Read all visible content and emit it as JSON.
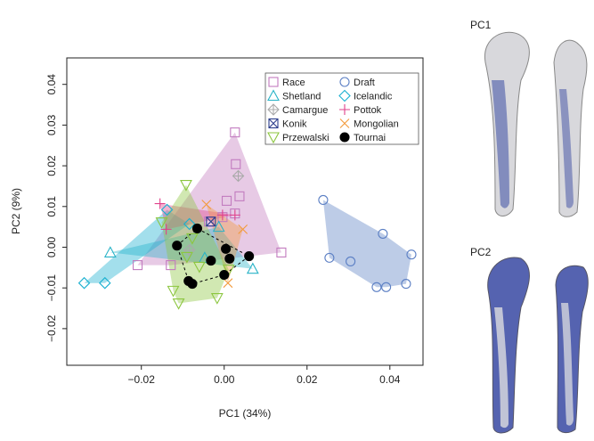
{
  "chart_data": {
    "type": "scatter",
    "x_label": "PC1 (34%)",
    "y_label": "PC2 (9%)",
    "xlim": [
      -0.038,
      0.048
    ],
    "ylim": [
      -0.029,
      0.0465
    ],
    "xticks": [
      {
        "value": -0.02,
        "label": "−0.02"
      },
      {
        "value": 0,
        "label": "0.00"
      },
      {
        "value": 0.02,
        "label": "0.02"
      },
      {
        "value": 0.04,
        "label": "0.04"
      }
    ],
    "yticks": [
      {
        "value": -0.02,
        "label": "−0.02"
      },
      {
        "value": -0.01,
        "label": "−0.01"
      },
      {
        "value": 0,
        "label": "0.00"
      },
      {
        "value": 0.01,
        "label": "0.01"
      },
      {
        "value": 0.02,
        "label": "0.02"
      },
      {
        "value": 0.03,
        "label": "0.03"
      },
      {
        "value": 0.04,
        "label": "0.04"
      }
    ],
    "series": [
      {
        "name": "Race",
        "color": "#c27bbf",
        "marker": "square",
        "hull": true,
        "x": [
          0.0026,
          0.0028,
          0.0037,
          0.0006,
          -0.0004,
          0.0026,
          -0.0037,
          0.0138,
          -0.0209,
          -0.0129
        ],
        "y": [
          0.0282,
          0.0204,
          0.0125,
          0.0114,
          0.0074,
          0.0083,
          0.0063,
          -0.0013,
          -0.0044,
          -0.0044
        ]
      },
      {
        "name": "Draft",
        "color": "#5b7fc4",
        "marker": "circle",
        "hull": true,
        "x": [
          0.0239,
          0.0254,
          0.0305,
          0.0383,
          0.0452,
          0.0368,
          0.0391,
          0.0439
        ],
        "y": [
          0.0116,
          -0.0026,
          -0.0035,
          0.0033,
          -0.0018,
          -0.0098,
          -0.0098,
          -0.009
        ]
      },
      {
        "name": "Shetland",
        "color": "#29b3c7",
        "marker": "triangle",
        "hull": true,
        "x": [
          -0.0275,
          -0.0013,
          0.0069,
          -0.0047
        ],
        "y": [
          -0.0013,
          0.005,
          -0.0053,
          -0.0026
        ]
      },
      {
        "name": "Icelandic",
        "color": "#1ab0d0",
        "marker": "diamond",
        "hull": true,
        "x": [
          -0.0338,
          -0.0288,
          -0.0138,
          -0.0084
        ],
        "y": [
          -0.0088,
          -0.0088,
          0.0092,
          0.0057
        ]
      },
      {
        "name": "Camargue",
        "color": "#aaaaaa",
        "marker": "diamond-plus",
        "hull": false,
        "x": [
          0.0034,
          -0.0084
        ],
        "y": [
          0.0175,
          -0.0007
        ]
      },
      {
        "name": "Pottok",
        "color": "#e0408b",
        "marker": "plus",
        "hull": true,
        "x": [
          -0.0155,
          -0.014,
          0.0026,
          -0.0004
        ],
        "y": [
          0.0107,
          0.0044,
          0.0079,
          0.0079
        ]
      },
      {
        "name": "Konik",
        "color": "#2c3e8c",
        "marker": "x-square",
        "hull": false,
        "x": [
          -0.0032
        ],
        "y": [
          0.0063
        ]
      },
      {
        "name": "Mongolian",
        "color": "#f39a3c",
        "marker": "x",
        "hull": true,
        "x": [
          -0.0043,
          0.0045,
          0.0009
        ],
        "y": [
          0.0105,
          0.0044,
          -0.0088
        ]
      },
      {
        "name": "Przewalski",
        "color": "#8cc63f",
        "marker": "triangle-down",
        "hull": true,
        "x": [
          -0.0092,
          -0.0151,
          -0.0123,
          -0.011,
          -0.0017,
          -0.009,
          -0.006,
          0.0011,
          -0.0077
        ],
        "y": [
          0.0153,
          0.0061,
          -0.0107,
          -0.0138,
          -0.0125,
          -0.0024,
          -0.0048,
          -0.0055,
          0.0022
        ]
      },
      {
        "name": "Tournai",
        "color": "#000000",
        "marker": "dot",
        "hull": true,
        "hull_dashed": true,
        "x": [
          -0.0114,
          -0.0065,
          -0.0086,
          -0.0077,
          -0.0032,
          0.0004,
          0.0013,
          0.006,
          0
        ],
        "y": [
          0.0004,
          0.0046,
          -0.0083,
          -0.009,
          -0.0033,
          -0.0004,
          -0.0028,
          -0.0022,
          -0.0068
        ]
      }
    ]
  },
  "panels": [
    {
      "label": "PC1"
    },
    {
      "label": "PC2"
    }
  ]
}
